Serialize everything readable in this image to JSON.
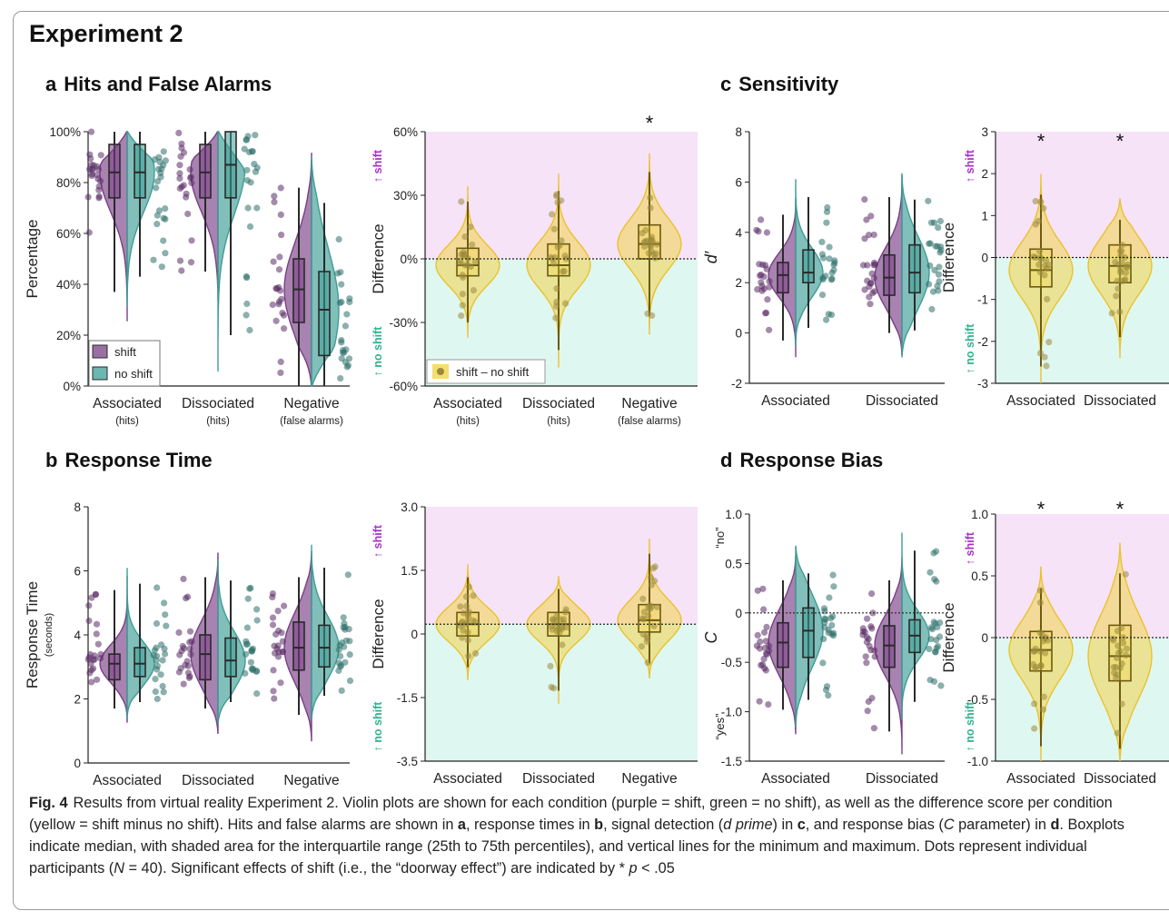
{
  "heading": "Experiment 2",
  "panels": {
    "a": {
      "letter": "a",
      "title": "Hits and False Alarms"
    },
    "b": {
      "letter": "b",
      "title": "Response Time"
    },
    "c": {
      "letter": "c",
      "title": "Sensitivity"
    },
    "d": {
      "letter": "d",
      "title": "Response Bias"
    }
  },
  "colors": {
    "shift": "#7a3f86",
    "no_shift": "#3e9d95",
    "diff": "#f2d44b",
    "shift_bg": "#f6e3f8",
    "noshift_bg": "#dff7f1",
    "shift_text": "#a832c8",
    "noshift_text": "#2fb38f"
  },
  "labels": {
    "shift_arrow": "↑ shift",
    "noshift_arrow": "↑ no shift",
    "legend_shift": "shift",
    "legend_noshift": "no shift",
    "legend_diff": "shift – no shift",
    "yes": "“yes”",
    "no": "“no”",
    "star": "*"
  },
  "chart_data": [
    {
      "id": "a-left",
      "type": "violin",
      "ylabel": "Percentage",
      "ylim": [
        0,
        100
      ],
      "yticks": [
        "0%",
        "20%",
        "40%",
        "60%",
        "80%",
        "100%"
      ],
      "categories": [
        {
          "name": "Associated",
          "sub": "(hits)"
        },
        {
          "name": "Dissociated",
          "sub": "(hits)"
        },
        {
          "name": "Negative",
          "sub": "(false alarms)"
        }
      ],
      "series": [
        {
          "name": "shift",
          "medians": [
            84,
            84,
            38
          ],
          "q1": [
            74,
            74,
            25
          ],
          "q3": [
            95,
            95,
            50
          ],
          "min": [
            37,
            45,
            0
          ],
          "max": [
            100,
            100,
            78
          ]
        },
        {
          "name": "no shift",
          "medians": [
            84,
            87,
            30
          ],
          "q1": [
            74,
            74,
            12
          ],
          "q3": [
            95,
            100,
            45
          ],
          "min": [
            43,
            20,
            0
          ],
          "max": [
            100,
            100,
            72
          ]
        }
      ]
    },
    {
      "id": "a-right",
      "type": "violin",
      "ylabel": "Difference",
      "ylim": [
        -60,
        60
      ],
      "yticks": [
        "-60%",
        "-30%",
        "0%",
        "30%",
        "60%"
      ],
      "categories": [
        {
          "name": "Associated",
          "sub": "(hits)"
        },
        {
          "name": "Dissociated",
          "sub": "(hits)"
        },
        {
          "name": "Negative",
          "sub": "(false alarms)"
        }
      ],
      "series": [
        {
          "name": "shift – no shift",
          "medians": [
            -3,
            -3,
            7
          ],
          "q1": [
            -8,
            -8,
            0
          ],
          "q3": [
            5,
            7,
            16
          ],
          "min": [
            -30,
            -43,
            -27
          ],
          "max": [
            27,
            32,
            41
          ]
        }
      ],
      "significant": [
        false,
        false,
        true
      ]
    },
    {
      "id": "b-left",
      "type": "violin",
      "ylabel": "Response Time",
      "ylabel_sub": "(seconds)",
      "ylim": [
        0,
        8
      ],
      "yticks": [
        "0",
        "2",
        "4",
        "6",
        "8"
      ],
      "categories": [
        {
          "name": "Associated"
        },
        {
          "name": "Dissociated"
        },
        {
          "name": "Negative"
        }
      ],
      "series": [
        {
          "name": "shift",
          "medians": [
            3.1,
            3.4,
            3.6
          ],
          "q1": [
            2.6,
            2.6,
            2.9
          ],
          "q3": [
            3.4,
            4.0,
            4.4
          ],
          "min": [
            1.7,
            1.7,
            1.5
          ],
          "max": [
            5.4,
            5.8,
            5.8
          ]
        },
        {
          "name": "no shift",
          "medians": [
            3.1,
            3.2,
            3.6
          ],
          "q1": [
            2.7,
            2.7,
            3.0
          ],
          "q3": [
            3.6,
            3.9,
            4.3
          ],
          "min": [
            1.9,
            1.9,
            2.1
          ],
          "max": [
            5.6,
            5.7,
            6.1
          ]
        }
      ]
    },
    {
      "id": "b-right",
      "type": "violin",
      "ylabel": "Difference",
      "ylim": [
        -3.5,
        3.0
      ],
      "yticks": [
        "-3.5",
        "-1.5",
        "0",
        "1.5",
        "3.0"
      ],
      "categories": [
        {
          "name": "Associated"
        },
        {
          "name": "Dissociated"
        },
        {
          "name": "Negative"
        }
      ],
      "series": [
        {
          "name": "shift – no shift",
          "medians": [
            0.0,
            0.0,
            0.1
          ],
          "q1": [
            -0.3,
            -0.3,
            -0.2
          ],
          "q3": [
            0.3,
            0.3,
            0.5
          ],
          "min": [
            -1.1,
            -1.7,
            -1.0
          ],
          "max": [
            1.2,
            0.9,
            1.8
          ]
        }
      ],
      "significant": [
        false,
        false,
        false
      ]
    },
    {
      "id": "c-left",
      "type": "violin",
      "ylabel": "d′",
      "ylim": [
        -2,
        8
      ],
      "yticks": [
        "-2",
        "0",
        "2",
        "4",
        "6",
        "8"
      ],
      "categories": [
        {
          "name": "Associated"
        },
        {
          "name": "Dissociated"
        }
      ],
      "series": [
        {
          "name": "shift",
          "medians": [
            2.3,
            2.2
          ],
          "q1": [
            1.6,
            1.5
          ],
          "q3": [
            2.8,
            3.1
          ],
          "min": [
            -0.3,
            0.0
          ],
          "max": [
            4.7,
            5.4
          ]
        },
        {
          "name": "no shift",
          "medians": [
            2.4,
            2.4
          ],
          "q1": [
            2.0,
            1.6
          ],
          "q3": [
            3.3,
            3.5
          ],
          "min": [
            0.2,
            0.1
          ],
          "max": [
            5.4,
            5.3
          ]
        }
      ]
    },
    {
      "id": "c-right",
      "type": "violin",
      "ylabel": "Difference",
      "ylim": [
        -3,
        3
      ],
      "yticks": [
        "-3",
        "-2",
        "-1",
        "0",
        "1",
        "2",
        "3"
      ],
      "categories": [
        {
          "name": "Associated"
        },
        {
          "name": "Dissociated"
        }
      ],
      "series": [
        {
          "name": "shift – no shift",
          "medians": [
            -0.3,
            -0.2
          ],
          "q1": [
            -0.7,
            -0.6
          ],
          "q3": [
            0.2,
            0.3
          ],
          "min": [
            -2.6,
            -1.9
          ],
          "max": [
            1.5,
            0.9
          ]
        }
      ],
      "significant": [
        true,
        true
      ]
    },
    {
      "id": "d-left",
      "type": "violin",
      "ylabel": "C",
      "ylim": [
        -1.5,
        1.0
      ],
      "yticks": [
        "-1.5",
        "-1.0",
        "-0.5",
        "0",
        "0.5",
        "1.0"
      ],
      "categories": [
        {
          "name": "Associated"
        },
        {
          "name": "Dissociated"
        }
      ],
      "series": [
        {
          "name": "shift",
          "medians": [
            -0.3,
            -0.33
          ],
          "q1": [
            -0.55,
            -0.55
          ],
          "q3": [
            -0.1,
            -0.13
          ],
          "min": [
            -0.98,
            -1.2
          ],
          "max": [
            0.33,
            0.33
          ]
        },
        {
          "name": "no shift",
          "medians": [
            -0.18,
            -0.23
          ],
          "q1": [
            -0.45,
            -0.4
          ],
          "q3": [
            0.05,
            -0.07
          ],
          "min": [
            -0.88,
            -0.9
          ],
          "max": [
            0.4,
            0.63
          ]
        }
      ]
    },
    {
      "id": "d-right",
      "type": "violin",
      "ylabel": "Difference",
      "ylim": [
        -1.0,
        1.0
      ],
      "yticks": [
        "-1.0",
        "-0.5",
        "0",
        "0.5",
        "1.0"
      ],
      "categories": [
        {
          "name": "Associated"
        },
        {
          "name": "Dissociated"
        }
      ],
      "series": [
        {
          "name": "shift – no shift",
          "medians": [
            -0.1,
            -0.15
          ],
          "q1": [
            -0.27,
            -0.35
          ],
          "q3": [
            0.05,
            0.1
          ],
          "min": [
            -0.88,
            -0.9
          ],
          "max": [
            0.4,
            0.52
          ]
        }
      ],
      "significant": [
        true,
        true
      ]
    }
  ],
  "caption": {
    "fig": "Fig. 4",
    "s1": "Results from virtual reality Experiment 2. Violin plots are shown for each condition (purple = shift, green = no shift), as well as the difference score per condition (yellow = shift minus no shift). Hits and false alarms are shown in ",
    "a": "a",
    "s2": ", response times in ",
    "b": "b",
    "s3": ", signal detection (",
    "dprime": "d prime",
    "s4": ") in ",
    "c": "c",
    "s5": ", and response bias (",
    "C": "C",
    "s6": " parameter) in ",
    "d": "d",
    "s7": ". Boxplots indicate median, with shaded area for the interquartile range (25th to 75th percentiles), and vertical lines for the minimum and maximum. Dots represent individual participants (",
    "N": "N",
    "s8": " = 40). Significant effects of shift (i.e., the “doorway effect”) are indicated by * ",
    "p": "p",
    "s9": " < .05"
  }
}
